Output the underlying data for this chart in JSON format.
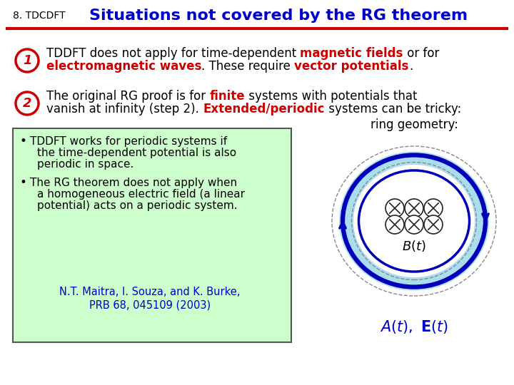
{
  "slide_number": "8. TDCDFT",
  "title": "Situations not covered by the RG theorem",
  "title_color": "#0000CC",
  "slide_number_color": "#000000",
  "header_line_color": "#CC0000",
  "bg_color": "#FFFFFF",
  "box_bg_color": "#CCFFCC",
  "box_edge_color": "#555555",
  "citation_color": "#0000CC",
  "ring_label": "ring geometry:",
  "ring_label_color": "#000000",
  "At_Et_color": "#0000CC",
  "red_color": "#CC0000",
  "black_color": "#000000",
  "blue_color": "#0000CC"
}
